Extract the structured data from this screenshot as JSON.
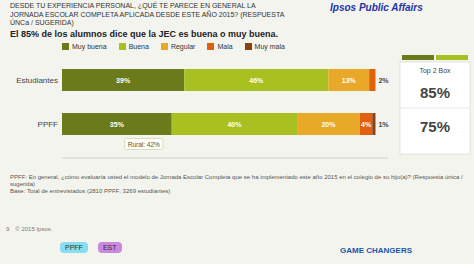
{
  "chart_data": {
    "type": "bar",
    "orientation": "horizontal",
    "stacked": true,
    "data_labels": true,
    "tick_labels": "y",
    "grid": false,
    "legend": "top",
    "background": "#f4f4ee",
    "title": "DESDE TU EXPERIENCIA PERSONAL, ¿QUÉ TE PARECE EN GENERAL LA\nJORNADA ESCOLAR COMPLETA APLICADA DESDE ESTE AÑO 2015? (RESPUESTA\nÚNCa / SUGERIDA)",
    "subtitle": "El 85% de los alumnos dice que la JEC es buena o muy buena.",
    "logo": "Ipsos Public Affairs",
    "categories": [
      "Estudiantes",
      "PPFF"
    ],
    "xlim": [
      0,
      104
    ],
    "series": [
      {
        "name": "Muy buena",
        "color": "#6b7a1a",
        "values": [
          39,
          35
        ],
        "value_labels": [
          "39%",
          "35%"
        ]
      },
      {
        "name": "Buena",
        "color": "#a8c020",
        "values": [
          46,
          40
        ],
        "value_labels": [
          "46%",
          "40%"
        ]
      },
      {
        "name": "Regular",
        "color": "#e8a828",
        "values": [
          13,
          20
        ],
        "value_labels": [
          "13%",
          "20%"
        ]
      },
      {
        "name": "Mala",
        "color": "#e06010",
        "values": [
          2,
          4
        ],
        "value_labels": [
          "2%",
          "4%"
        ]
      },
      {
        "name": "Muy mala",
        "color": "#8b4010",
        "values": [
          0,
          1
        ],
        "value_labels": [
          null,
          "1%"
        ]
      }
    ],
    "top2box": {
      "title": "Top 2 Box",
      "labels": [
        "85%",
        "75%"
      ],
      "colors": [
        "#6b7a1a",
        "#a8c020"
      ]
    },
    "annotations": [
      {
        "text": "Rural: 42%",
        "x": 20,
        "category": 1
      }
    ],
    "footnotes": [
      "PPFF: En general, ¿cómo evaluaría usted el modelo de Jornada Escolar Completa que se ha implementado este año 2015 en el colegio de su hijo(a)? (Respuesta única / sugerida)",
      "Base: Total de entrevistados (2810 PPFF; 3269 estudiantes)"
    ],
    "page": "9",
    "copyright": "© 2015 Ipsos.",
    "brand": "GAME CHANGERS",
    "tags": [
      {
        "text": "PPFF",
        "color": "#88ddee"
      },
      {
        "text": "EST",
        "color": "#cc88dd"
      }
    ]
  }
}
